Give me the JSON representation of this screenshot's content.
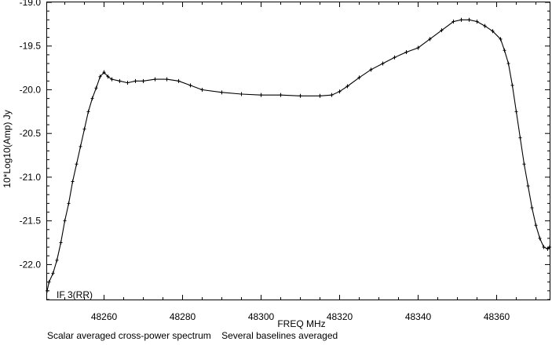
{
  "chart_data": {
    "type": "line",
    "xlabel": "FREQ   MHz",
    "ylabel": "10*Log10(Amp) Jy",
    "annotation": "IF 3(RR)",
    "xlim": [
      48245.5,
      48373.5
    ],
    "ylim": [
      -22.4,
      -19.0
    ],
    "xticks": [
      {
        "value": 48260,
        "label": "48260"
      },
      {
        "value": 48280,
        "label": "48280"
      },
      {
        "value": 48300,
        "label": "48300"
      },
      {
        "value": 48320,
        "label": "48320"
      },
      {
        "value": 48340,
        "label": "48340"
      },
      {
        "value": 48360,
        "label": "48360"
      }
    ],
    "yticks": [
      {
        "value": -19.0,
        "label": "-19.0"
      },
      {
        "value": -19.5,
        "label": "-19.5"
      },
      {
        "value": -20.0,
        "label": "-20.0"
      },
      {
        "value": -20.5,
        "label": "-20.5"
      },
      {
        "value": -21.0,
        "label": "-21.0"
      },
      {
        "value": -21.5,
        "label": "-21.5"
      },
      {
        "value": -22.0,
        "label": "-22.0"
      }
    ],
    "grid": false,
    "series": [
      {
        "x": [
          48245.5,
          48246,
          48247,
          48248,
          48249,
          48250,
          48251,
          48252,
          48253,
          48254,
          48255,
          48256,
          48257,
          48258,
          48259,
          48260,
          48261,
          48262,
          48264,
          48266,
          48268,
          48270,
          48273,
          48276,
          48279,
          48282,
          48285,
          48290,
          48295,
          48300,
          48305,
          48310,
          48315,
          48318,
          48320,
          48322,
          48325,
          48328,
          48331,
          48334,
          48337,
          48340,
          48343,
          48346,
          48349,
          48351,
          48353,
          48355,
          48357,
          48359,
          48361,
          48362,
          48363,
          48364,
          48365,
          48366,
          48367,
          48368,
          48369,
          48370,
          48371,
          48372,
          48373,
          48373.5
        ],
        "y": [
          -22.3,
          -22.2,
          -22.1,
          -21.95,
          -21.75,
          -21.5,
          -21.3,
          -21.05,
          -20.85,
          -20.65,
          -20.45,
          -20.25,
          -20.1,
          -19.98,
          -19.85,
          -19.8,
          -19.85,
          -19.88,
          -19.9,
          -19.92,
          -19.9,
          -19.9,
          -19.88,
          -19.88,
          -19.9,
          -19.95,
          -20.0,
          -20.03,
          -20.05,
          -20.06,
          -20.06,
          -20.07,
          -20.07,
          -20.06,
          -20.02,
          -19.96,
          -19.86,
          -19.77,
          -19.7,
          -19.63,
          -19.57,
          -19.52,
          -19.42,
          -19.32,
          -19.22,
          -19.2,
          -19.2,
          -19.22,
          -19.27,
          -19.33,
          -19.42,
          -19.55,
          -19.7,
          -19.95,
          -20.25,
          -20.55,
          -20.85,
          -21.1,
          -21.35,
          -21.55,
          -21.7,
          -21.8,
          -21.82,
          -21.8
        ]
      }
    ]
  },
  "footer": {
    "text": "Scalar averaged cross-power spectrum    Several baselines averaged"
  }
}
